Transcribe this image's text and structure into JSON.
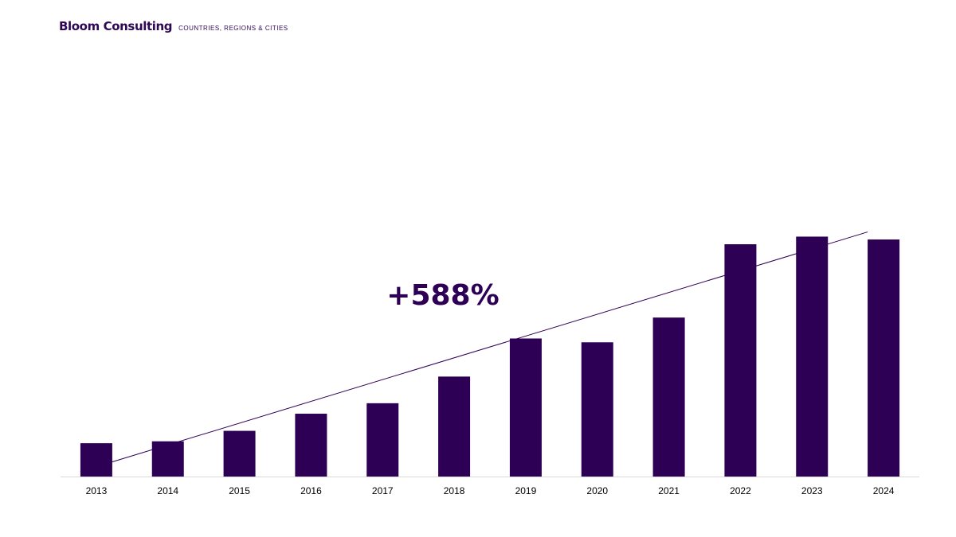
{
  "header": {
    "brand": "Bloom Consulting",
    "tagline": "COUNTRIES, REGIONS & CITIES"
  },
  "colors": {
    "bar": "#2e0055",
    "text": "#2e0854",
    "axis": "#d9d9d9"
  },
  "chart_data": {
    "type": "bar",
    "categories": [
      "2013",
      "2014",
      "2015",
      "2016",
      "2017",
      "2018",
      "2019",
      "2020",
      "2021",
      "2022",
      "2023",
      "2024"
    ],
    "values": [
      35,
      37,
      48,
      66,
      77,
      105,
      145,
      141,
      167,
      244,
      252,
      249
    ],
    "ylim": [
      0,
      300
    ],
    "trendline": true,
    "annotation": "+588%",
    "grid": false,
    "legend": "none"
  }
}
